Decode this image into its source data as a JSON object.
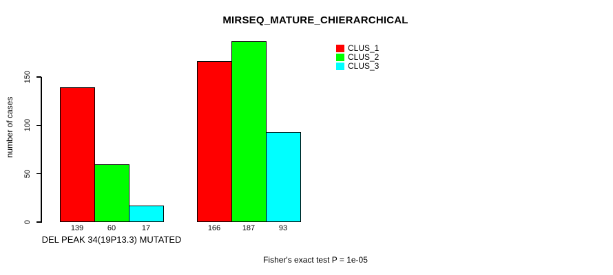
{
  "chart_data": {
    "type": "bar",
    "title": "MIRSEQ_MATURE_CHIERARCHICAL",
    "ylabel": "number of cases",
    "xlabel": "DEL PEAK 34(19P13.3) MUTATED",
    "annotation": "Fisher's exact test P = 1e-05",
    "categories": [
      "DEL PEAK 34(19P13.3) MUTATED",
      ""
    ],
    "series": [
      {
        "name": "CLUS_1",
        "color": "#ff0000",
        "values": [
          139,
          166
        ]
      },
      {
        "name": "CLUS_2",
        "color": "#00ff00",
        "values": [
          60,
          187
        ]
      },
      {
        "name": "CLUS_3",
        "color": "#00ffff",
        "values": [
          17,
          93
        ]
      }
    ],
    "yticks": [
      0,
      50,
      100,
      150
    ],
    "ylim": [
      0,
      195
    ],
    "bar_value_labels": [
      139,
      60,
      17,
      166,
      187,
      93
    ],
    "legend_position": "top-right",
    "grid": false,
    "background": "#ffffff",
    "axis_color": "#000000"
  }
}
